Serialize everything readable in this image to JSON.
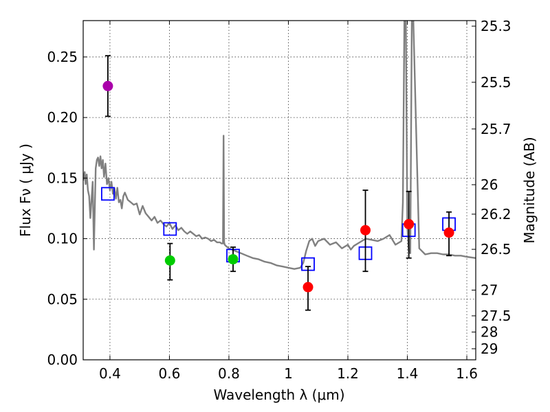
{
  "chart_data": {
    "type": "scatter",
    "xlabel": "Wavelength  λ (μm)",
    "ylabel": "Flux  Fν  ( μJy )",
    "ylabel_right": "Magnitude (AB)",
    "xlim": [
      0.31,
      1.63
    ],
    "ylim": [
      0.0,
      0.28
    ],
    "x_ticks": [
      0.4,
      0.6,
      0.8,
      1.0,
      1.2,
      1.4,
      1.6
    ],
    "x_tick_labels": [
      "0.4",
      "0.6",
      "0.8",
      "1",
      "1.2",
      "1.4",
      "1.6"
    ],
    "y_ticks": [
      0.0,
      0.05,
      0.1,
      0.15,
      0.2,
      0.25
    ],
    "y_tick_labels": [
      "0.00",
      "0.05",
      "0.10",
      "0.15",
      "0.20",
      "0.25"
    ],
    "mag_ticks": [
      "25.3",
      "25.5",
      "25.7",
      "26",
      "26.2",
      "26.5",
      "27",
      "27.5",
      "28",
      "29"
    ],
    "grid": true,
    "colors": {
      "model": "#808080",
      "purple": "#aa00aa",
      "green": "#00cc00",
      "red": "#ff0000",
      "box": "#0000ff",
      "errorbar": "#000000"
    },
    "series": [
      {
        "name": "Purple photometry",
        "color_key": "purple",
        "points": [
          {
            "x": 0.393,
            "y": 0.226,
            "lo": 0.201,
            "hi": 0.251
          }
        ]
      },
      {
        "name": "Green photometry",
        "color_key": "green",
        "points": [
          {
            "x": 0.602,
            "y": 0.082,
            "lo": 0.066,
            "hi": 0.096
          },
          {
            "x": 0.814,
            "y": 0.083,
            "lo": 0.073,
            "hi": 0.093
          }
        ]
      },
      {
        "name": "Red photometry",
        "color_key": "red",
        "points": [
          {
            "x": 1.066,
            "y": 0.06,
            "lo": 0.041,
            "hi": 0.077
          },
          {
            "x": 1.259,
            "y": 0.107,
            "lo": 0.073,
            "hi": 0.14
          },
          {
            "x": 1.405,
            "y": 0.112,
            "lo": 0.084,
            "hi": 0.139
          },
          {
            "x": 1.54,
            "y": 0.105,
            "lo": 0.086,
            "hi": 0.122
          }
        ]
      },
      {
        "name": "Model band flux",
        "color_key": "box",
        "marker": "open-square",
        "points": [
          {
            "x": 0.393,
            "y": 0.137
          },
          {
            "x": 0.602,
            "y": 0.108
          },
          {
            "x": 0.814,
            "y": 0.086
          },
          {
            "x": 1.066,
            "y": 0.079
          },
          {
            "x": 1.259,
            "y": 0.088
          },
          {
            "x": 1.405,
            "y": 0.107
          },
          {
            "x": 1.54,
            "y": 0.112
          }
        ]
      }
    ],
    "model_spectrum": {
      "name": "SED model",
      "color_key": "model",
      "x": [
        0.31,
        0.315,
        0.318,
        0.322,
        0.326,
        0.33,
        0.334,
        0.338,
        0.342,
        0.346,
        0.352,
        0.356,
        0.36,
        0.364,
        0.368,
        0.372,
        0.376,
        0.38,
        0.385,
        0.39,
        0.395,
        0.4,
        0.405,
        0.41,
        0.415,
        0.42,
        0.425,
        0.43,
        0.435,
        0.44,
        0.445,
        0.45,
        0.46,
        0.47,
        0.48,
        0.49,
        0.5,
        0.51,
        0.52,
        0.53,
        0.54,
        0.55,
        0.56,
        0.57,
        0.58,
        0.59,
        0.6,
        0.61,
        0.62,
        0.63,
        0.64,
        0.65,
        0.66,
        0.67,
        0.68,
        0.69,
        0.7,
        0.71,
        0.72,
        0.73,
        0.74,
        0.75,
        0.76,
        0.77,
        0.775,
        0.78,
        0.782,
        0.784,
        0.786,
        0.79,
        0.8,
        0.81,
        0.82,
        0.83,
        0.84,
        0.86,
        0.88,
        0.9,
        0.92,
        0.94,
        0.96,
        0.98,
        1.0,
        1.02,
        1.04,
        1.05,
        1.06,
        1.07,
        1.08,
        1.09,
        1.1,
        1.12,
        1.14,
        1.16,
        1.18,
        1.2,
        1.21,
        1.22,
        1.24,
        1.26,
        1.28,
        1.3,
        1.32,
        1.34,
        1.36,
        1.38,
        1.385,
        1.39,
        1.395,
        1.4,
        1.405,
        1.41,
        1.415,
        1.42,
        1.44,
        1.46,
        1.48,
        1.5,
        1.52,
        1.54,
        1.56,
        1.58,
        1.6,
        1.63
      ],
      "y": [
        0.148,
        0.155,
        0.145,
        0.153,
        0.14,
        0.135,
        0.117,
        0.132,
        0.147,
        0.091,
        0.158,
        0.165,
        0.167,
        0.16,
        0.168,
        0.158,
        0.165,
        0.151,
        0.162,
        0.145,
        0.15,
        0.14,
        0.147,
        0.137,
        0.142,
        0.133,
        0.142,
        0.13,
        0.132,
        0.125,
        0.135,
        0.138,
        0.132,
        0.13,
        0.128,
        0.129,
        0.12,
        0.127,
        0.121,
        0.118,
        0.115,
        0.118,
        0.113,
        0.115,
        0.112,
        0.11,
        0.113,
        0.108,
        0.111,
        0.107,
        0.109,
        0.106,
        0.104,
        0.106,
        0.104,
        0.102,
        0.103,
        0.1,
        0.101,
        0.1,
        0.098,
        0.099,
        0.097,
        0.097,
        0.096,
        0.096,
        0.185,
        0.097,
        0.095,
        0.094,
        0.092,
        0.091,
        0.09,
        0.089,
        0.088,
        0.086,
        0.084,
        0.083,
        0.081,
        0.08,
        0.078,
        0.077,
        0.076,
        0.075,
        0.076,
        0.08,
        0.09,
        0.098,
        0.1,
        0.094,
        0.098,
        0.1,
        0.095,
        0.097,
        0.092,
        0.095,
        0.091,
        0.094,
        0.097,
        0.1,
        0.099,
        0.098,
        0.1,
        0.103,
        0.095,
        0.098,
        0.13,
        0.28,
        0.28,
        0.11,
        0.09,
        0.088,
        0.28,
        0.28,
        0.092,
        0.087,
        0.088,
        0.088,
        0.087,
        0.087,
        0.086,
        0.086,
        0.085,
        0.084
      ]
    }
  }
}
